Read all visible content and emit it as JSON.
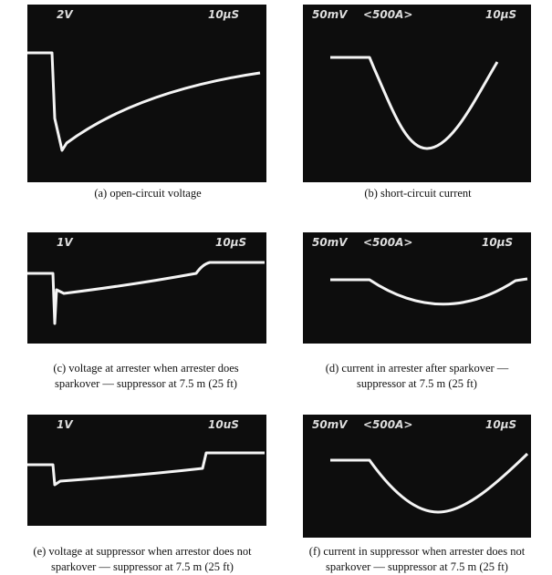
{
  "panels": [
    {
      "scope_labels": [
        "2V",
        "10µS"
      ],
      "caption": [
        "(a)  open-circuit voltage"
      ]
    },
    {
      "scope_labels": [
        "50mV",
        "<500A>",
        "10µS"
      ],
      "caption": [
        "(b)  short-circuit current"
      ]
    },
    {
      "scope_labels": [
        "1V",
        "10µS"
      ],
      "caption": [
        "(c)  voltage at arrester when arrester does",
        "sparkover — suppressor at 7.5 m (25 ft)"
      ]
    },
    {
      "scope_labels": [
        "50mV",
        "<500A>",
        "10µS"
      ],
      "caption": [
        "(d)  current in arrester after sparkover —",
        "suppressor at 7.5 m (25 ft)"
      ]
    },
    {
      "scope_labels": [
        "1V",
        "10uS"
      ],
      "caption": [
        "(e)  voltage at suppressor when arrestor does not",
        "sparkover — suppressor at 7.5 m (25 ft)"
      ]
    },
    {
      "scope_labels": [
        "50mV",
        "<500A>",
        "10µS"
      ],
      "caption": [
        "(f)  current in suppressor when arrester does not",
        "sparkover — suppressor at 7.5 m (25 ft)"
      ]
    }
  ]
}
